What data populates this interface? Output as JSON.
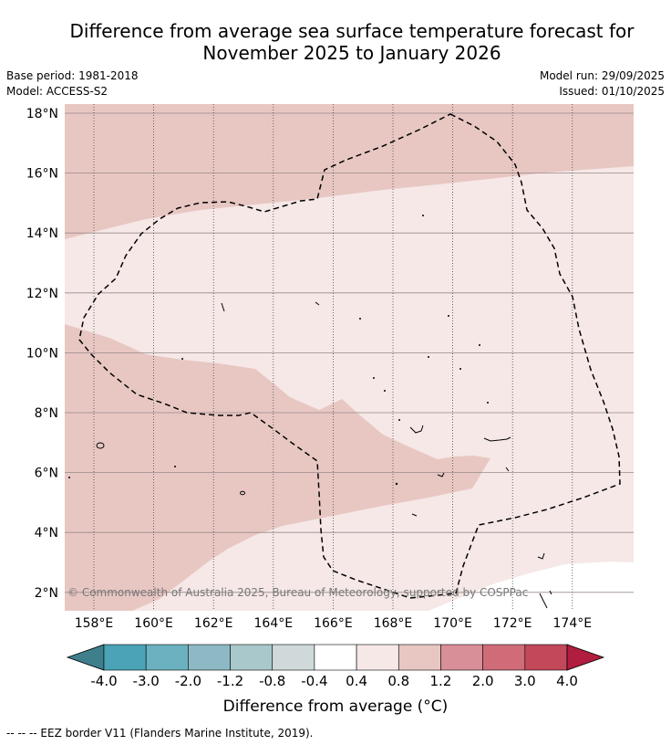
{
  "title": {
    "line1": "Difference from average sea surface temperature forecast for",
    "line2": "November 2025 to January 2026"
  },
  "meta": {
    "base_period": "Base period: 1981-2018",
    "model": "Model: ACCESS-S2",
    "model_run": "Model run: 29/09/2025",
    "issued": "Issued: 01/10/2025"
  },
  "map": {
    "lat_ticks": [
      "18°N",
      "16°N",
      "14°N",
      "12°N",
      "10°N",
      "8°N",
      "6°N",
      "4°N",
      "2°N"
    ],
    "lon_ticks": [
      "158°E",
      "160°E",
      "162°E",
      "164°E",
      "166°E",
      "168°E",
      "170°E",
      "172°E",
      "174°E"
    ],
    "copyright": "© Commonwealth of Australia 2025, Bureau of Meteorology, supported by COSPPac",
    "colors": {
      "band_0_4_to_0_8": "#f5e8e7",
      "band_0_8_to_1_2": "#e8c7c3",
      "band_minus_0_4_to_0_4": "#ffffff"
    }
  },
  "colorbar": {
    "tick_labels": [
      "-4.0",
      "-3.0",
      "-2.0",
      "-1.2",
      "-0.8",
      "-0.4",
      "0.4",
      "0.8",
      "1.2",
      "2.0",
      "3.0",
      "4.0"
    ],
    "colors": [
      "#3f7f8c",
      "#4aa3b6",
      "#6bb1c0",
      "#8db9c4",
      "#a9c8cb",
      "#cfd9da",
      "#ffffff",
      "#f5e8e7",
      "#e8c7c3",
      "#d98f98",
      "#cf6c78",
      "#c2485a",
      "#b11d3e"
    ],
    "label": "Difference from average (°C)"
  },
  "footer": "--  --  -- EEZ border V11 (Flanders Marine Institute, 2019)."
}
